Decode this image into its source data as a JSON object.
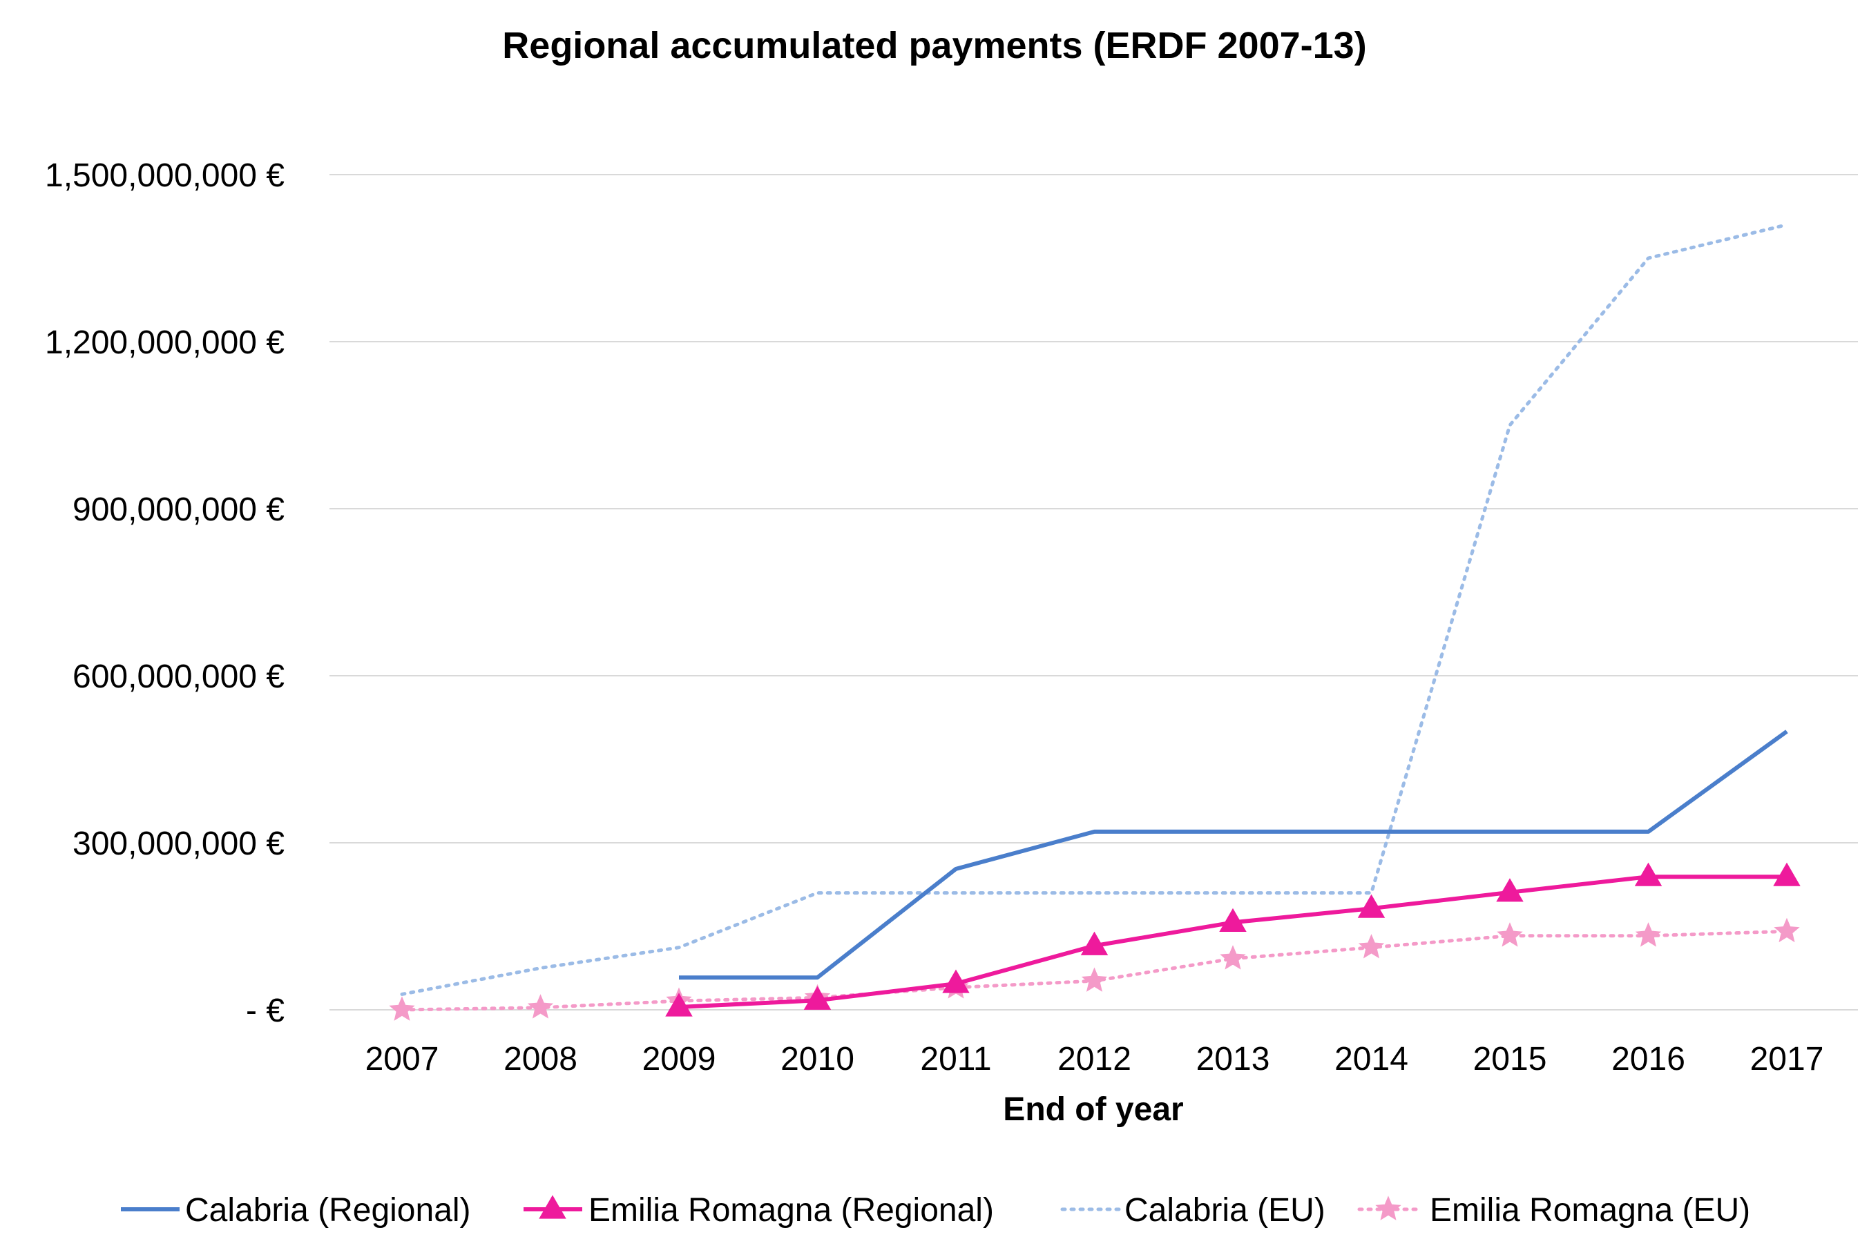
{
  "chart_data": {
    "type": "line",
    "title": "Regional accumulated payments (ERDF 2007-13)",
    "xlabel": "End of year",
    "ylabel": "",
    "categories": [
      "2007",
      "2008",
      "2009",
      "2010",
      "2011",
      "2012",
      "2013",
      "2014",
      "2015",
      "2016",
      "2017"
    ],
    "ylim": [
      0,
      1500000000
    ],
    "yticks": [
      0,
      300000000,
      600000000,
      900000000,
      1200000000,
      1500000000
    ],
    "ytick_labels": [
      "- €",
      "300,000,000 €",
      "600,000,000 €",
      "900,000,000 €",
      "1,200,000,000 €",
      "1,500,000,000 €"
    ],
    "grid": true,
    "legend_position": "bottom",
    "series": [
      {
        "name": "Calabria (Regional)",
        "color": "#4a7ecb",
        "style": "solid",
        "marker": "none",
        "values": [
          null,
          null,
          58000000,
          58000000,
          253000000,
          320000000,
          320000000,
          320000000,
          320000000,
          320000000,
          500000000
        ]
      },
      {
        "name": "Emilia Romagna (Regional)",
        "color": "#ee1a9c",
        "style": "solid",
        "marker": "triangle",
        "values": [
          null,
          null,
          5000000,
          17000000,
          47000000,
          115000000,
          157000000,
          182000000,
          211000000,
          239000000,
          239000000
        ]
      },
      {
        "name": "Calabria (EU)",
        "color": "#9bbbe6",
        "style": "dotted",
        "marker": "none",
        "values": [
          28000000,
          75000000,
          112000000,
          210000000,
          210000000,
          210000000,
          210000000,
          210000000,
          1050000000,
          1350000000,
          1410000000
        ]
      },
      {
        "name": "Emilia Romagna (EU)",
        "color": "#f49ac8",
        "style": "dotted",
        "marker": "star",
        "values": [
          0,
          4000000,
          16000000,
          22000000,
          40000000,
          52000000,
          92000000,
          112000000,
          133000000,
          133000000,
          141000000
        ]
      }
    ]
  }
}
